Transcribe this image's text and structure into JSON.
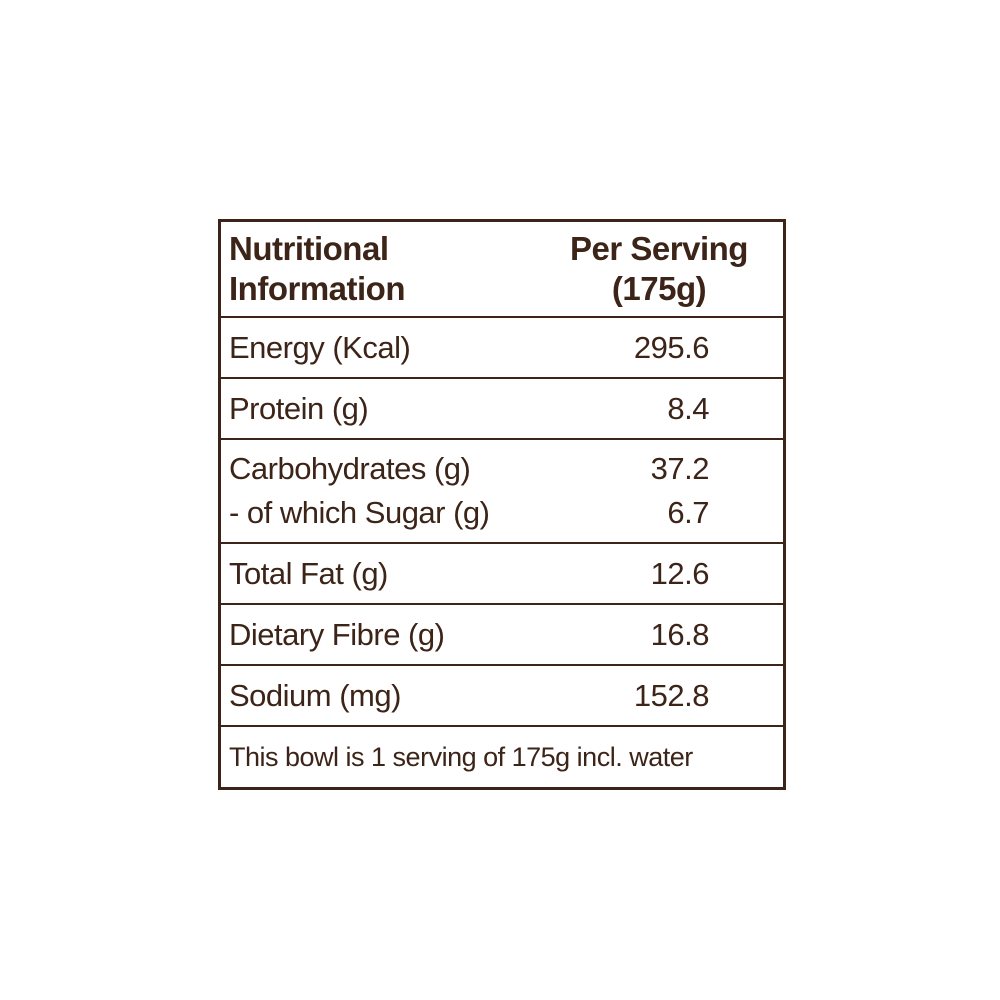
{
  "header": {
    "left_line1": "Nutritional",
    "left_line2": "Information",
    "right_line1": "Per Serving",
    "right_line2": "(175g)"
  },
  "rows": [
    {
      "name": "Energy (Kcal)",
      "value": "295.6"
    },
    {
      "name": "Protein (g)",
      "value": "8.4"
    },
    {
      "name": "Carbohydrates (g)",
      "value": "37.2"
    },
    {
      "name": "- of which Sugar (g)",
      "value": "6.7"
    },
    {
      "name": "Total Fat (g)",
      "value": "12.6"
    },
    {
      "name": "Dietary Fibre (g)",
      "value": "16.8"
    },
    {
      "name": "Sodium (mg)",
      "value": "152.8"
    }
  ],
  "footer": "This bowl is 1 serving of 175g incl. water",
  "colors": {
    "text": "#3d2418",
    "border": "#3d2418",
    "background": "#ffffff"
  }
}
